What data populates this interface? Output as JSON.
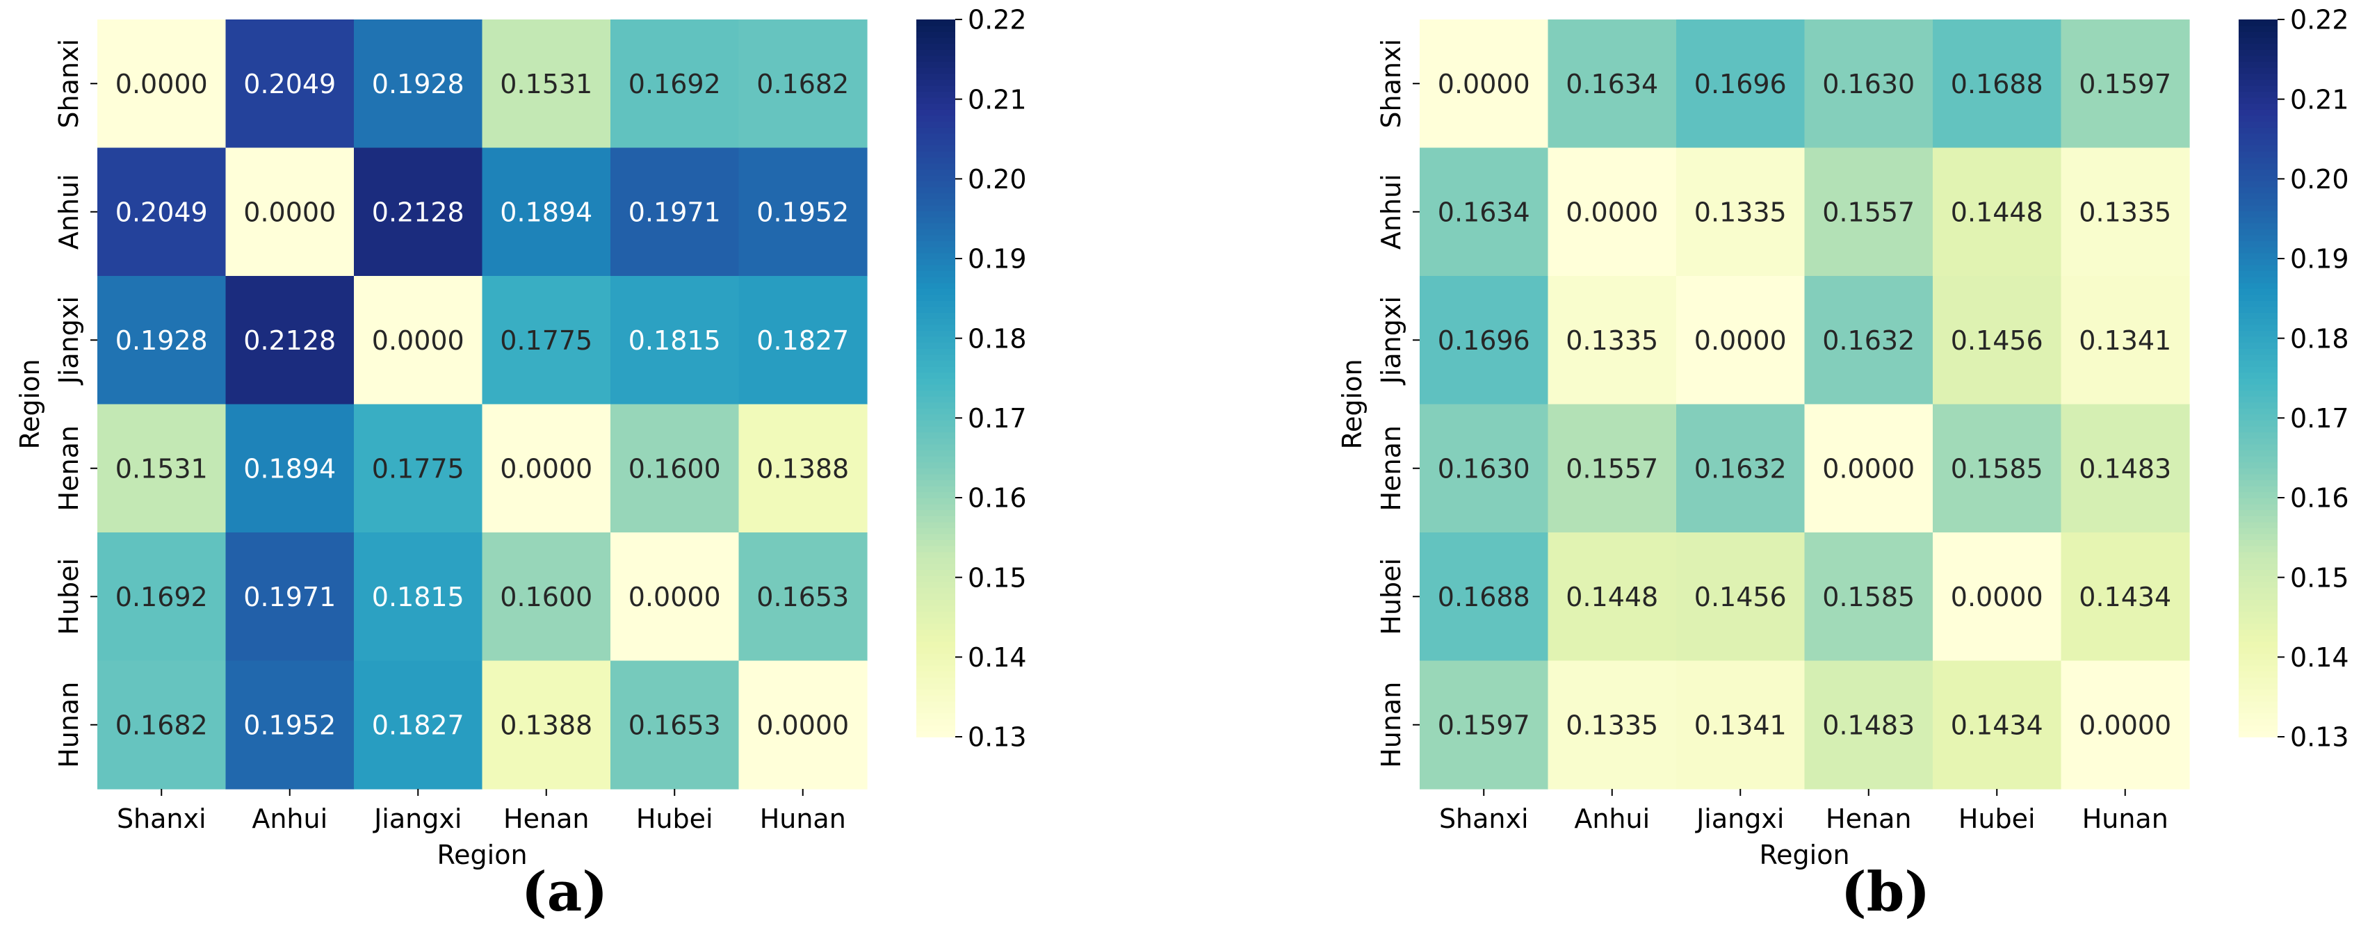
{
  "figure": {
    "panels": [
      {
        "label": "(a)",
        "label_letter": "a"
      },
      {
        "label": "(b)",
        "label_letter": "b"
      }
    ]
  },
  "colormap": {
    "name": "YlGnBu",
    "stops": [
      "#ffffd9",
      "#edf8b1",
      "#c7e9b4",
      "#7fcdbb",
      "#41b6c4",
      "#1d91c0",
      "#225ea8",
      "#253494",
      "#081d58"
    ],
    "text_light_color": "#ffffff",
    "text_dark_color": "#262626"
  },
  "chart_data": [
    {
      "type": "heatmap",
      "panel": "(a)",
      "title": "",
      "xlabel": "Region",
      "ylabel": "Region",
      "x_categories": [
        "Shanxi",
        "Anhui",
        "Jiangxi",
        "Henan",
        "Hubei",
        "Hunan"
      ],
      "y_categories": [
        "Shanxi",
        "Anhui",
        "Jiangxi",
        "Henan",
        "Hubei",
        "Hunan"
      ],
      "values": [
        [
          0.0,
          0.2049,
          0.1928,
          0.1531,
          0.1692,
          0.1682
        ],
        [
          0.2049,
          0.0,
          0.2128,
          0.1894,
          0.1971,
          0.1952
        ],
        [
          0.1928,
          0.2128,
          0.0,
          0.1775,
          0.1815,
          0.1827
        ],
        [
          0.1531,
          0.1894,
          0.1775,
          0.0,
          0.16,
          0.1388
        ],
        [
          0.1692,
          0.1971,
          0.1815,
          0.16,
          0.0,
          0.1653
        ],
        [
          0.1682,
          0.1952,
          0.1827,
          0.1388,
          0.1653,
          0.0
        ]
      ],
      "cell_labels": [
        [
          "0.0000",
          "0.2049",
          "0.1928",
          "0.1531",
          "0.1692",
          "0.1682"
        ],
        [
          "0.2049",
          "0.0000",
          "0.2128",
          "0.1894",
          "0.1971",
          "0.1952"
        ],
        [
          "0.1928",
          "0.2128",
          "0.0000",
          "0.1775",
          "0.1815",
          "0.1827"
        ],
        [
          "0.1531",
          "0.1894",
          "0.1775",
          "0.0000",
          "0.1600",
          "0.1388"
        ],
        [
          "0.1692",
          "0.1971",
          "0.1815",
          "0.1600",
          "0.0000",
          "0.1653"
        ],
        [
          "0.1682",
          "0.1952",
          "0.1827",
          "0.1388",
          "0.1653",
          "0.0000"
        ]
      ],
      "vmin": 0.13,
      "vmax": 0.22,
      "colorbar_ticks": [
        0.13,
        0.14,
        0.15,
        0.16,
        0.17,
        0.18,
        0.19,
        0.2,
        0.21,
        0.22
      ],
      "colorbar_tick_labels": [
        "0.13",
        "0.14",
        "0.15",
        "0.16",
        "0.17",
        "0.18",
        "0.19",
        "0.20",
        "0.21",
        "0.22"
      ]
    },
    {
      "type": "heatmap",
      "panel": "(b)",
      "title": "",
      "xlabel": "Region",
      "ylabel": "Region",
      "x_categories": [
        "Shanxi",
        "Anhui",
        "Jiangxi",
        "Henan",
        "Hubei",
        "Hunan"
      ],
      "y_categories": [
        "Shanxi",
        "Anhui",
        "Jiangxi",
        "Henan",
        "Hubei",
        "Hunan"
      ],
      "values": [
        [
          0.0,
          0.1634,
          0.1696,
          0.163,
          0.1688,
          0.1597
        ],
        [
          0.1634,
          0.0,
          0.1335,
          0.1557,
          0.1448,
          0.1335
        ],
        [
          0.1696,
          0.1335,
          0.0,
          0.1632,
          0.1456,
          0.1341
        ],
        [
          0.163,
          0.1557,
          0.1632,
          0.0,
          0.1585,
          0.1483
        ],
        [
          0.1688,
          0.1448,
          0.1456,
          0.1585,
          0.0,
          0.1434
        ],
        [
          0.1597,
          0.1335,
          0.1341,
          0.1483,
          0.1434,
          0.0
        ]
      ],
      "cell_labels": [
        [
          "0.0000",
          "0.1634",
          "0.1696",
          "0.1630",
          "0.1688",
          "0.1597"
        ],
        [
          "0.1634",
          "0.0000",
          "0.1335",
          "0.1557",
          "0.1448",
          "0.1335"
        ],
        [
          "0.1696",
          "0.1335",
          "0.0000",
          "0.1632",
          "0.1456",
          "0.1341"
        ],
        [
          "0.1630",
          "0.1557",
          "0.1632",
          "0.0000",
          "0.1585",
          "0.1483"
        ],
        [
          "0.1688",
          "0.1448",
          "0.1456",
          "0.1585",
          "0.0000",
          "0.1434"
        ],
        [
          "0.1597",
          "0.1335",
          "0.1341",
          "0.1483",
          "0.1434",
          "0.0000"
        ]
      ],
      "vmin": 0.13,
      "vmax": 0.22,
      "colorbar_ticks": [
        0.13,
        0.14,
        0.15,
        0.16,
        0.17,
        0.18,
        0.19,
        0.2,
        0.21,
        0.22
      ],
      "colorbar_tick_labels": [
        "0.13",
        "0.14",
        "0.15",
        "0.16",
        "0.17",
        "0.18",
        "0.19",
        "0.20",
        "0.21",
        "0.22"
      ]
    }
  ]
}
